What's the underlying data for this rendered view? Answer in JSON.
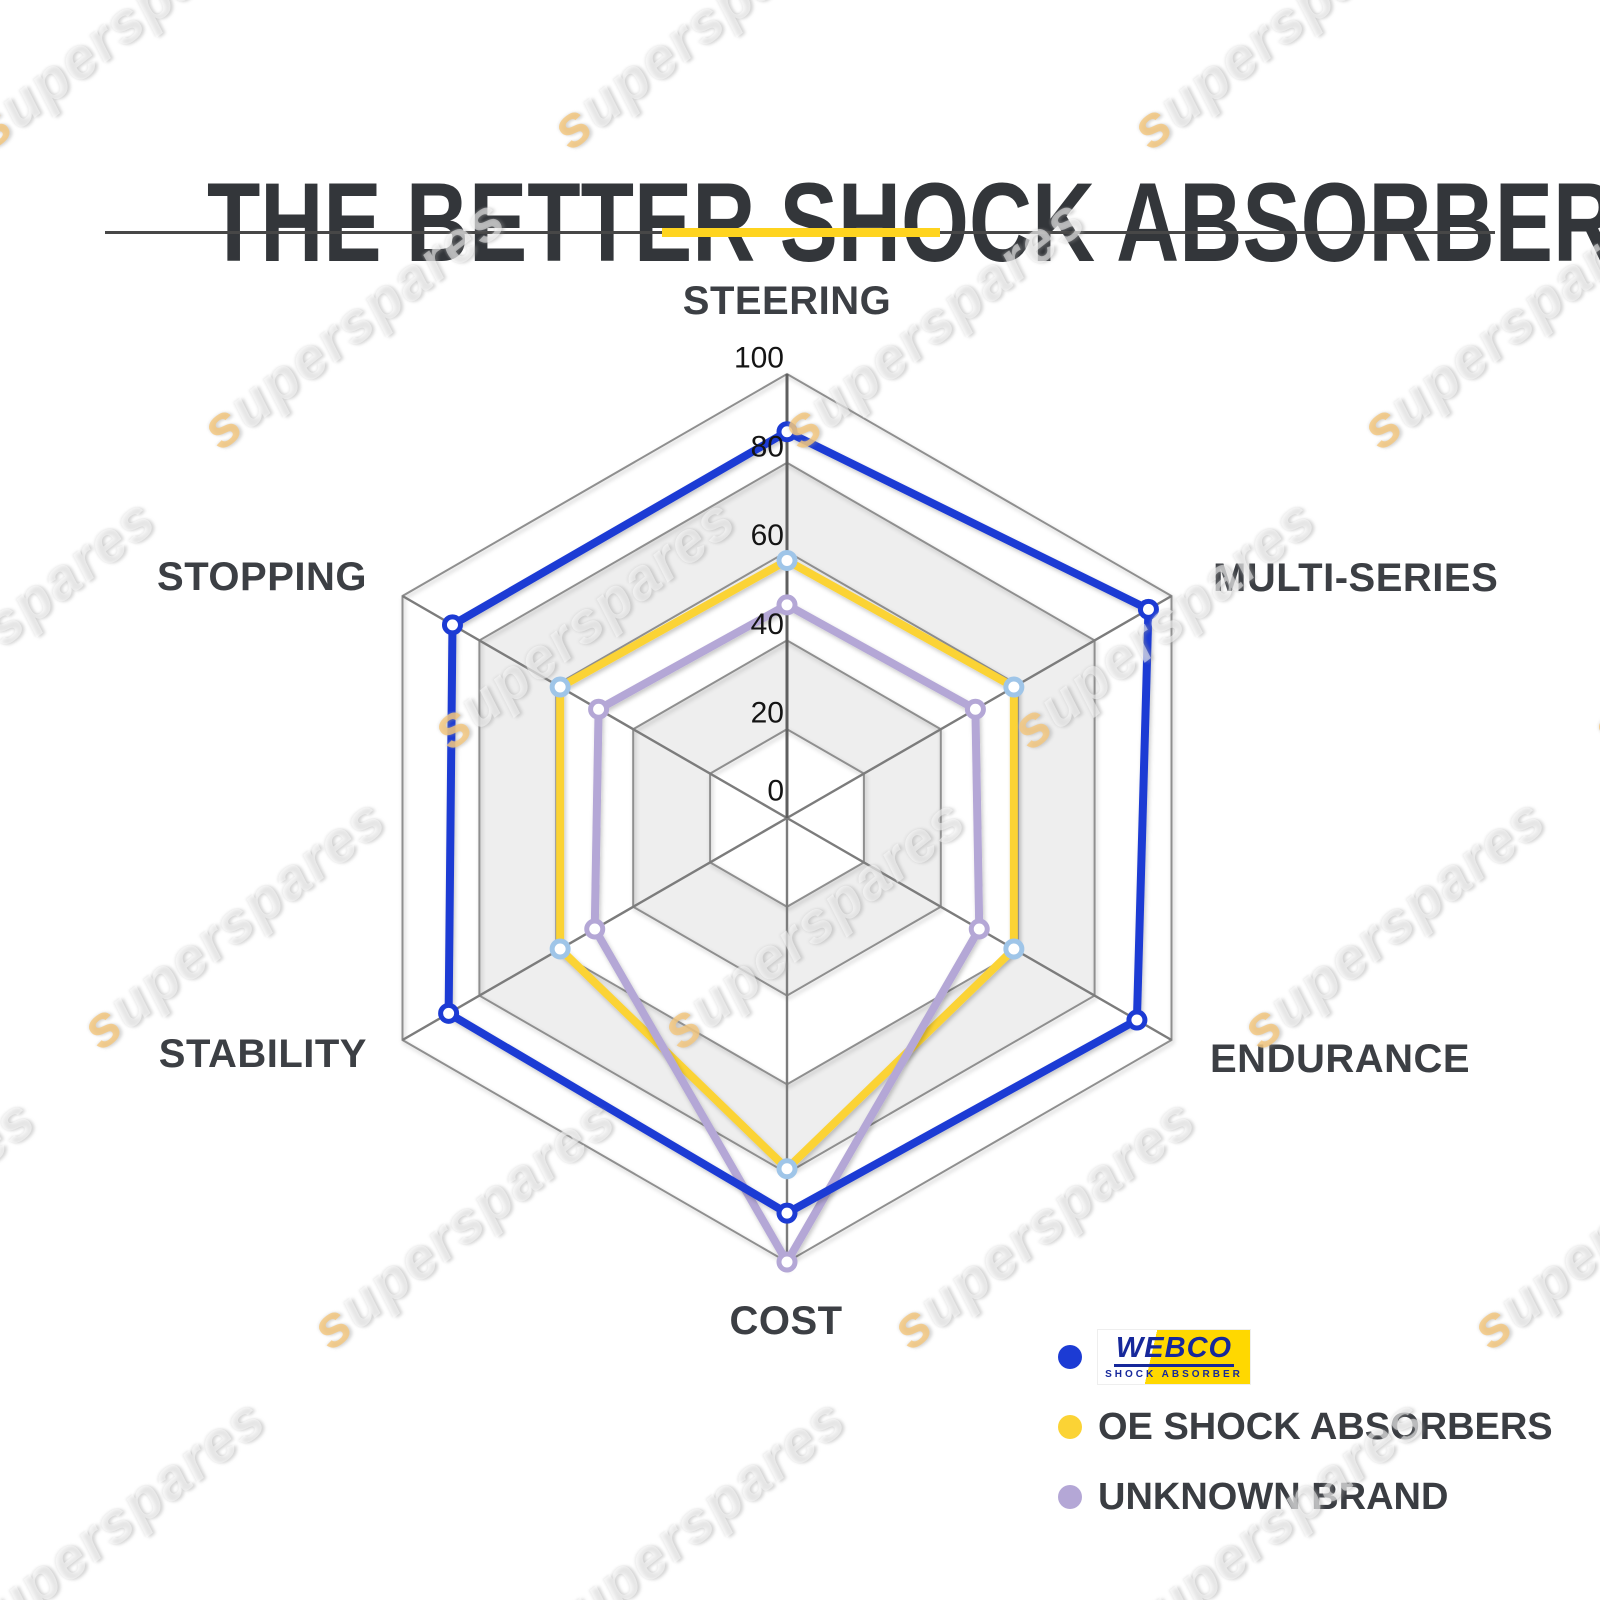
{
  "header": {
    "divider_accent_color": "#FFD41F",
    "divider_line_color": "#474747"
  },
  "watermark": {
    "text": "superspares"
  },
  "chart_data": {
    "type": "radar",
    "title": "THE BETTER SHOCK ABSORBERS",
    "categories": [
      "STEERING",
      "MULTI-SERIES",
      "ENDURANCE",
      "COST",
      "STABILITY",
      "STOPPING"
    ],
    "axis": {
      "min": 0,
      "max": 100,
      "ticks": [
        0,
        20,
        40,
        60,
        80,
        100
      ],
      "tick_color": "#141414"
    },
    "grid": {
      "shape": "hexagon",
      "ring_color": "#8f8f8f",
      "spoke_color": "#7c7c7c",
      "main_axis_color": "#5f5f5f",
      "band_fill": "#eeeeee",
      "band_alt_fill": "#ffffff",
      "legend_position": "bottom-right"
    },
    "series": [
      {
        "name": "WEBCO SHOCK ABSORBER",
        "color": "#1c3bd4",
        "marker_stroke": "#1c3bd4",
        "values": [
          87,
          94,
          91,
          89,
          88,
          87
        ]
      },
      {
        "name": "OE SHOCK ABSORBERS",
        "color": "#fbd335",
        "marker_stroke": "#9fc5e8",
        "values": [
          58,
          59,
          59,
          79,
          59,
          59
        ]
      },
      {
        "name": "UNKNOWN BRAND",
        "color": "#b4a7d6",
        "marker_stroke": "#b4a7d6",
        "values": [
          48,
          49,
          50,
          100,
          50,
          49
        ]
      }
    ]
  },
  "legend": {
    "items": [
      {
        "label": "WEBCO",
        "dot_color": "#1c3bd4",
        "logo": {
          "word": "WEBCO",
          "sub": "SHOCK ABSORBER",
          "bg": "#FFD800",
          "fg": "#16289b"
        }
      },
      {
        "label": "OE SHOCK ABSORBERS",
        "dot_color": "#fbd335"
      },
      {
        "label": "UNKNOWN BRAND",
        "dot_color": "#b4a7d6"
      }
    ]
  }
}
